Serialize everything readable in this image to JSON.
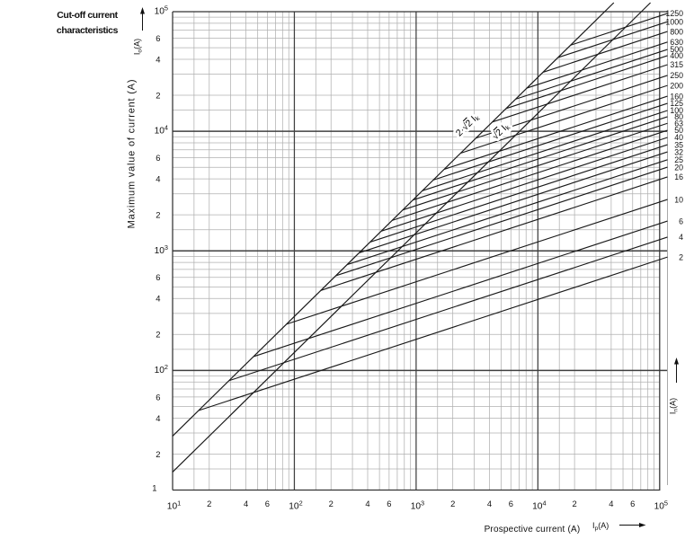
{
  "title": {
    "line1": "Cut-off current",
    "line2": "characteristics"
  },
  "colors": {
    "curve": "#1a1a1a",
    "grid_minor": "#b0b0b0",
    "grid_major": "#404040",
    "border": "#333333",
    "text": "#111111"
  },
  "chart_data": {
    "type": "line",
    "title": "Cut-off current characteristics",
    "x_axis": {
      "label": "Prospective current (A)",
      "symbol_base": "I",
      "symbol_sub": "p",
      "symbol_rest": "(A)",
      "min": 10,
      "max": 100000,
      "decade_exponents": [
        1,
        2,
        3,
        4,
        5
      ],
      "minor_gridline_multipliers": [
        1.5,
        2,
        3,
        4,
        5,
        6,
        7,
        8,
        9
      ],
      "minor_tick_labels": [
        "2",
        "4",
        "6"
      ]
    },
    "y_axis": {
      "label": "Maximum value of current (A)",
      "symbol_base": "I",
      "symbol_sub": "o",
      "symbol_rest": "(A)",
      "min": 10,
      "max": 100000,
      "decade_exponents": [
        5,
        4,
        3,
        2
      ],
      "bottom_tick_label": "1",
      "minor_gridline_multipliers": [
        1.5,
        2,
        3,
        4,
        5,
        6,
        7,
        8,
        9
      ],
      "minor_tick_labels": [
        "6",
        "4",
        "2"
      ]
    },
    "ratings_axis": {
      "symbol_base": "I",
      "symbol_sub": "n",
      "symbol_rest": "(A)"
    },
    "asymptotes": [
      {
        "label_prefix": "2·",
        "label_root": "√2",
        "label_base": "I",
        "label_sub": "k",
        "factor": 2.8284
      },
      {
        "label_prefix": "",
        "label_root": "√2",
        "label_base": "I",
        "label_sub": "k",
        "factor": 1.4142
      }
    ],
    "curve_slope_loglog": 0.3333,
    "series": [
      {
        "rating": "1250",
        "cutoff_at_100kA": 92000
      },
      {
        "rating": "1000",
        "cutoff_at_100kA": 78500
      },
      {
        "rating": "800",
        "cutoff_at_100kA": 65000
      },
      {
        "rating": "630",
        "cutoff_at_100kA": 53000
      },
      {
        "rating": "500",
        "cutoff_at_100kA": 46000
      },
      {
        "rating": "400",
        "cutoff_at_100kA": 40800
      },
      {
        "rating": "315",
        "cutoff_at_100kA": 34300
      },
      {
        "rating": "250",
        "cutoff_at_100kA": 27900
      },
      {
        "rating": "200",
        "cutoff_at_100kA": 23000
      },
      {
        "rating": "160",
        "cutoff_at_100kA": 18700
      },
      {
        "rating": "125",
        "cutoff_at_100kA": 16300
      },
      {
        "rating": "100",
        "cutoff_at_100kA": 14200
      },
      {
        "rating": "80",
        "cutoff_at_100kA": 12600
      },
      {
        "rating": "63",
        "cutoff_at_100kA": 11100
      },
      {
        "rating": "50",
        "cutoff_at_100kA": 9700
      },
      {
        "rating": "40",
        "cutoff_at_100kA": 8450
      },
      {
        "rating": "35",
        "cutoff_at_100kA": 7350
      },
      {
        "rating": "32",
        "cutoff_at_100kA": 6400
      },
      {
        "rating": "25",
        "cutoff_at_100kA": 5500
      },
      {
        "rating": "20",
        "cutoff_at_100kA": 4770
      },
      {
        "rating": "16",
        "cutoff_at_100kA": 3950
      },
      {
        "rating": "10",
        "cutoff_at_100kA": 2560
      },
      {
        "rating": "6",
        "cutoff_at_100kA": 1690
      },
      {
        "rating": "4",
        "cutoff_at_100kA": 1240
      },
      {
        "rating": "2",
        "cutoff_at_100kA": 845
      }
    ]
  }
}
